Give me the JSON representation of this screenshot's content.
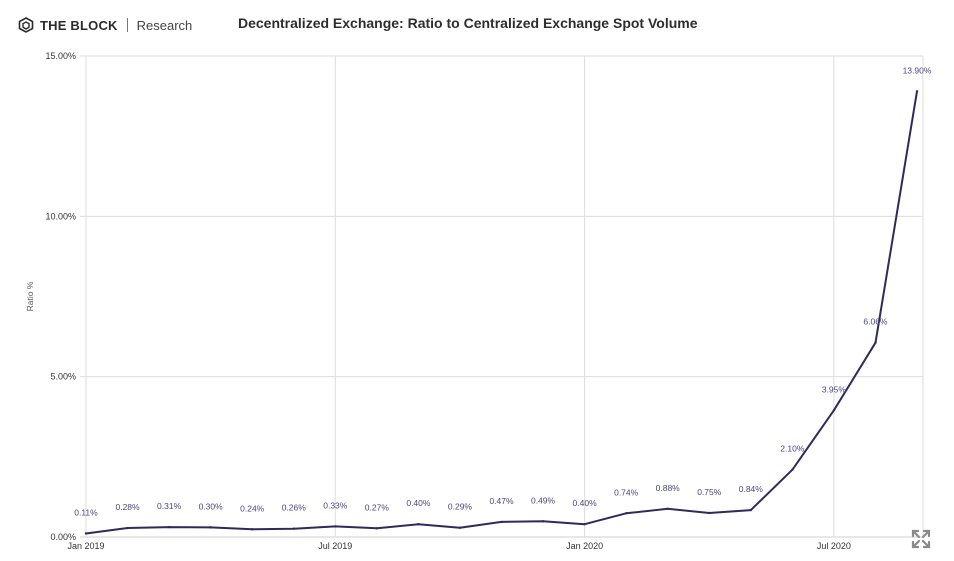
{
  "header": {
    "brand": "THE BLOCK",
    "sub": "Research",
    "title": "Decentralized Exchange: Ratio to Centralized Exchange Spot Volume"
  },
  "icons": {
    "logo": "cube-logo-icon",
    "expand": "expand-icon"
  },
  "colors": {
    "line": "#2e2a5c",
    "grid": "#dddddd",
    "label": "#4a4680",
    "text": "#333333"
  },
  "chart_data": {
    "type": "line",
    "title": "Decentralized Exchange: Ratio to Centralized Exchange Spot Volume",
    "xlabel": "",
    "ylabel": "Ratio %",
    "ylim": [
      0,
      15
    ],
    "grid": true,
    "ytick_values": [
      0,
      5,
      10,
      15
    ],
    "ytick_labels": [
      "0.00%",
      "5.00%",
      "10.00%",
      "15.00%"
    ],
    "xtick_index": [
      0,
      6,
      12,
      18
    ],
    "xtick_labels": [
      "Jan 2019",
      "Jul 2019",
      "Jan 2020",
      "Jul 2020"
    ],
    "x": [
      "Jan 2019",
      "Feb 2019",
      "Mar 2019",
      "Apr 2019",
      "May 2019",
      "Jun 2019",
      "Jul 2019",
      "Aug 2019",
      "Sep 2019",
      "Oct 2019",
      "Nov 2019",
      "Dec 2019",
      "Jan 2020",
      "Feb 2020",
      "Mar 2020",
      "Apr 2020",
      "May 2020",
      "Jun 2020",
      "Jul 2020",
      "Aug 2020",
      "Sep 2020"
    ],
    "values": [
      0.11,
      0.28,
      0.31,
      0.3,
      0.24,
      0.26,
      0.33,
      0.27,
      0.4,
      0.29,
      0.47,
      0.49,
      0.4,
      0.74,
      0.88,
      0.75,
      0.84,
      2.1,
      3.95,
      6.06,
      13.9
    ],
    "data_labels": [
      "0.11%",
      "0.28%",
      "0.31%",
      "0.30%",
      "0.24%",
      "0.26%",
      "0.33%",
      "0.27%",
      "0.40%",
      "0.29%",
      "0.47%",
      "0.49%",
      "0.40%",
      "0.74%",
      "0.88%",
      "0.75%",
      "0.84%",
      "2.10%",
      "3.95%",
      "6.06%",
      "13.90%"
    ]
  }
}
